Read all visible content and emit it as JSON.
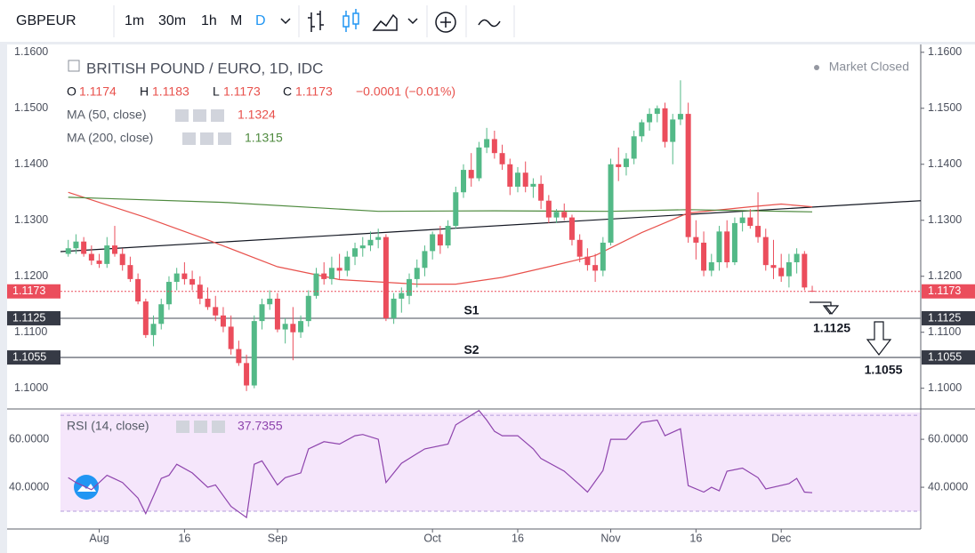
{
  "toolbar": {
    "symbol": "GBPEUR",
    "intervals": [
      "1m",
      "30m",
      "1h",
      "M",
      "D"
    ]
  },
  "chart_data": {
    "type": "candlestick",
    "title": "BRITISH POUND / EURO, 1D, IDC",
    "status": "Market Closed",
    "ohlc_labels": [
      "O",
      "H",
      "L",
      "C"
    ],
    "change": "−0.0001 (−0.01%)",
    "up_color": "#53b987",
    "down_color": "#eb4d5c",
    "xlim": [
      -1,
      110
    ],
    "xticks": [
      {
        "value": 4,
        "label": "Aug"
      },
      {
        "value": 15,
        "label": "16"
      },
      {
        "value": 27,
        "label": "Sep"
      },
      {
        "value": 47,
        "label": "Oct"
      },
      {
        "value": 58,
        "label": "16"
      },
      {
        "value": 70,
        "label": "Nov"
      },
      {
        "value": 81,
        "label": "16"
      },
      {
        "value": 92,
        "label": "Dec"
      }
    ],
    "ylim": [
      1.0963,
      1.1614
    ],
    "yticks": [
      {
        "value": 1.1,
        "label": "1.1000"
      },
      {
        "value": 1.11,
        "label": "1.1100"
      },
      {
        "value": 1.12,
        "label": "1.1200"
      },
      {
        "value": 1.13,
        "label": "1.1300"
      },
      {
        "value": 1.14,
        "label": "1.1400"
      },
      {
        "value": 1.15,
        "label": "1.1500"
      },
      {
        "value": 1.16,
        "label": "1.1600"
      }
    ],
    "candles": [
      [
        1.124,
        1.1265,
        1.1235,
        1.125
      ],
      [
        1.125,
        1.1275,
        1.124,
        1.1262
      ],
      [
        1.1262,
        1.127,
        1.1235,
        1.124
      ],
      [
        1.124,
        1.1255,
        1.122,
        1.1228
      ],
      [
        1.1228,
        1.124,
        1.1215,
        1.1222
      ],
      [
        1.1222,
        1.127,
        1.1215,
        1.1255
      ],
      [
        1.1255,
        1.129,
        1.1235,
        1.124
      ],
      [
        1.124,
        1.125,
        1.121,
        1.122
      ],
      [
        1.122,
        1.1235,
        1.119,
        1.1195
      ],
      [
        1.1195,
        1.1205,
        1.115,
        1.1155
      ],
      [
        1.1155,
        1.116,
        1.109,
        1.1095
      ],
      [
        1.1095,
        1.113,
        1.1075,
        1.1115
      ],
      [
        1.1115,
        1.116,
        1.1105,
        1.115
      ],
      [
        1.115,
        1.12,
        1.114,
        1.119
      ],
      [
        1.119,
        1.1215,
        1.1175,
        1.1205
      ],
      [
        1.1205,
        1.1225,
        1.1185,
        1.1195
      ],
      [
        1.1195,
        1.121,
        1.1175,
        1.1185
      ],
      [
        1.1185,
        1.12,
        1.115,
        1.116
      ],
      [
        1.116,
        1.118,
        1.114,
        1.1145
      ],
      [
        1.1145,
        1.1165,
        1.112,
        1.113
      ],
      [
        1.113,
        1.1145,
        1.11,
        1.111
      ],
      [
        1.111,
        1.113,
        1.106,
        1.107
      ],
      [
        1.107,
        1.1085,
        1.104,
        1.1045
      ],
      [
        1.1045,
        1.106,
        1.0995,
        1.1005
      ],
      [
        1.1005,
        1.113,
        1.1,
        1.112
      ],
      [
        1.112,
        1.116,
        1.1105,
        1.115
      ],
      [
        1.115,
        1.1175,
        1.114,
        1.116
      ],
      [
        1.116,
        1.117,
        1.11,
        1.1105
      ],
      [
        1.1105,
        1.1125,
        1.108,
        1.1115
      ],
      [
        1.1115,
        1.1145,
        1.105,
        1.11
      ],
      [
        1.11,
        1.113,
        1.109,
        1.112
      ],
      [
        1.112,
        1.1175,
        1.111,
        1.1165
      ],
      [
        1.1165,
        1.1215,
        1.116,
        1.1205
      ],
      [
        1.1205,
        1.1225,
        1.1185,
        1.1195
      ],
      [
        1.1195,
        1.1235,
        1.1185,
        1.1215
      ],
      [
        1.1215,
        1.124,
        1.1195,
        1.121
      ],
      [
        1.121,
        1.1245,
        1.12,
        1.1235
      ],
      [
        1.1235,
        1.126,
        1.122,
        1.125
      ],
      [
        1.125,
        1.127,
        1.1235,
        1.1255
      ],
      [
        1.1255,
        1.128,
        1.1245,
        1.1265
      ],
      [
        1.1265,
        1.1285,
        1.125,
        1.127
      ],
      [
        1.127,
        1.1275,
        1.112,
        1.1125
      ],
      [
        1.1125,
        1.117,
        1.1115,
        1.116
      ],
      [
        1.116,
        1.118,
        1.1135,
        1.117
      ],
      [
        1.1165,
        1.1205,
        1.115,
        1.1195
      ],
      [
        1.1195,
        1.123,
        1.118,
        1.1215
      ],
      [
        1.1215,
        1.1255,
        1.12,
        1.1245
      ],
      [
        1.1245,
        1.128,
        1.123,
        1.1275
      ],
      [
        1.1275,
        1.129,
        1.124,
        1.1255
      ],
      [
        1.1255,
        1.13,
        1.125,
        1.129
      ],
      [
        1.129,
        1.136,
        1.1285,
        1.135
      ],
      [
        1.135,
        1.14,
        1.134,
        1.139
      ],
      [
        1.139,
        1.142,
        1.136,
        1.1375
      ],
      [
        1.1375,
        1.144,
        1.137,
        1.143
      ],
      [
        1.143,
        1.1465,
        1.142,
        1.1445
      ],
      [
        1.1445,
        1.146,
        1.141,
        1.142
      ],
      [
        1.142,
        1.1435,
        1.139,
        1.14
      ],
      [
        1.14,
        1.141,
        1.1345,
        1.136
      ],
      [
        1.136,
        1.1395,
        1.135,
        1.1385
      ],
      [
        1.1385,
        1.1405,
        1.135,
        1.136
      ],
      [
        1.136,
        1.1375,
        1.134,
        1.1365
      ],
      [
        1.1365,
        1.138,
        1.132,
        1.1335
      ],
      [
        1.1335,
        1.1345,
        1.1295,
        1.1305
      ],
      [
        1.1305,
        1.132,
        1.1295,
        1.1315
      ],
      [
        1.1315,
        1.133,
        1.13,
        1.1305
      ],
      [
        1.1305,
        1.131,
        1.1255,
        1.1265
      ],
      [
        1.1265,
        1.1275,
        1.1225,
        1.1235
      ],
      [
        1.1235,
        1.125,
        1.121,
        1.122
      ],
      [
        1.122,
        1.124,
        1.119,
        1.121
      ],
      [
        1.121,
        1.127,
        1.12,
        1.126
      ],
      [
        1.126,
        1.141,
        1.1255,
        1.14
      ],
      [
        1.14,
        1.143,
        1.137,
        1.1395
      ],
      [
        1.1395,
        1.142,
        1.138,
        1.141
      ],
      [
        1.141,
        1.146,
        1.14,
        1.145
      ],
      [
        1.145,
        1.148,
        1.144,
        1.1475
      ],
      [
        1.1475,
        1.15,
        1.146,
        1.149
      ],
      [
        1.149,
        1.1505,
        1.1475,
        1.15
      ],
      [
        1.15,
        1.151,
        1.143,
        1.144
      ],
      [
        1.144,
        1.149,
        1.14,
        1.148
      ],
      [
        1.148,
        1.155,
        1.147,
        1.149
      ],
      [
        1.149,
        1.151,
        1.126,
        1.127
      ],
      [
        1.127,
        1.13,
        1.123,
        1.126
      ],
      [
        1.126,
        1.128,
        1.12,
        1.121
      ],
      [
        1.121,
        1.124,
        1.12,
        1.1225
      ],
      [
        1.1225,
        1.129,
        1.121,
        1.128
      ],
      [
        1.128,
        1.13,
        1.1215,
        1.1225
      ],
      [
        1.1225,
        1.1305,
        1.122,
        1.1295
      ],
      [
        1.1295,
        1.1315,
        1.128,
        1.1305
      ],
      [
        1.1305,
        1.132,
        1.1285,
        1.129
      ],
      [
        1.129,
        1.135,
        1.126,
        1.127
      ],
      [
        1.127,
        1.1285,
        1.121,
        1.122
      ],
      [
        1.122,
        1.1265,
        1.1195,
        1.1215
      ],
      [
        1.1215,
        1.124,
        1.119,
        1.12
      ],
      [
        1.12,
        1.124,
        1.118,
        1.1225
      ],
      [
        1.1225,
        1.125,
        1.1205,
        1.124
      ],
      [
        1.124,
        1.1245,
        1.1175,
        1.118
      ],
      [
        1.1174,
        1.1183,
        1.1173,
        1.1173
      ]
    ],
    "series": [
      {
        "name": "MA (50, close)",
        "color": "#e8514c",
        "x": [
          0,
          10,
          18,
          27,
          35,
          45,
          50,
          56,
          62,
          68,
          74,
          80,
          88,
          92,
          96
        ],
        "values": [
          1.135,
          1.1305,
          1.1265,
          1.1217,
          1.1194,
          1.1186,
          1.1186,
          1.1198,
          1.1217,
          1.1237,
          1.1278,
          1.1313,
          1.1324,
          1.1329,
          1.1324
        ]
      },
      {
        "name": "MA (200, close)",
        "color": "#4e8a3e",
        "x": [
          0,
          20,
          40,
          55,
          70,
          80,
          96
        ],
        "values": [
          1.1341,
          1.1332,
          1.1316,
          1.1317,
          1.1316,
          1.1319,
          1.1315
        ]
      }
    ],
    "trendline": {
      "color": "#131722",
      "x": [
        -1,
        110
      ],
      "values": [
        1.1244,
        1.1335
      ]
    },
    "levels": [
      {
        "name": "S1",
        "value": 1.1125
      },
      {
        "name": "S2",
        "value": 1.1055
      }
    ],
    "rsi": {
      "name": "RSI (14, close)",
      "color": "#8e44ad",
      "ylim": [
        22.6,
        71.9
      ],
      "bands": [
        30,
        70
      ],
      "yticks": [
        {
          "value": 40,
          "label": "40.0000"
        },
        {
          "value": 60,
          "label": "60.0000"
        }
      ],
      "x": [
        0,
        1,
        3,
        5,
        7,
        9,
        10,
        12,
        13,
        14,
        16,
        18,
        19,
        21,
        23,
        24,
        25,
        27,
        28,
        30,
        31,
        33,
        35,
        37,
        38,
        40,
        41,
        43,
        45,
        46,
        49,
        50,
        51,
        53,
        54,
        55,
        56,
        58,
        60,
        61,
        64,
        66,
        67,
        69,
        70,
        72,
        74,
        76,
        77,
        79,
        80,
        82,
        83,
        84,
        85,
        87,
        88,
        89,
        90,
        93,
        94,
        95,
        96
      ],
      "values": [
        44,
        42,
        39,
        45,
        42,
        35.5,
        29,
        43.7,
        45,
        49.6,
        46,
        40,
        41,
        32,
        27.4,
        49.6,
        51,
        41,
        44,
        46,
        56,
        59,
        58,
        61.5,
        62,
        60,
        42,
        50,
        54,
        56,
        58,
        66,
        68,
        72,
        68,
        63.3,
        61.5,
        61.5,
        56,
        52,
        46.7,
        41,
        38,
        47,
        60,
        60,
        67,
        68,
        61.5,
        64.4,
        40.7,
        38,
        40,
        38.5,
        46.7,
        48,
        46,
        44,
        39.3,
        41.5,
        43.7,
        38,
        37.7355
      ]
    }
  }
}
